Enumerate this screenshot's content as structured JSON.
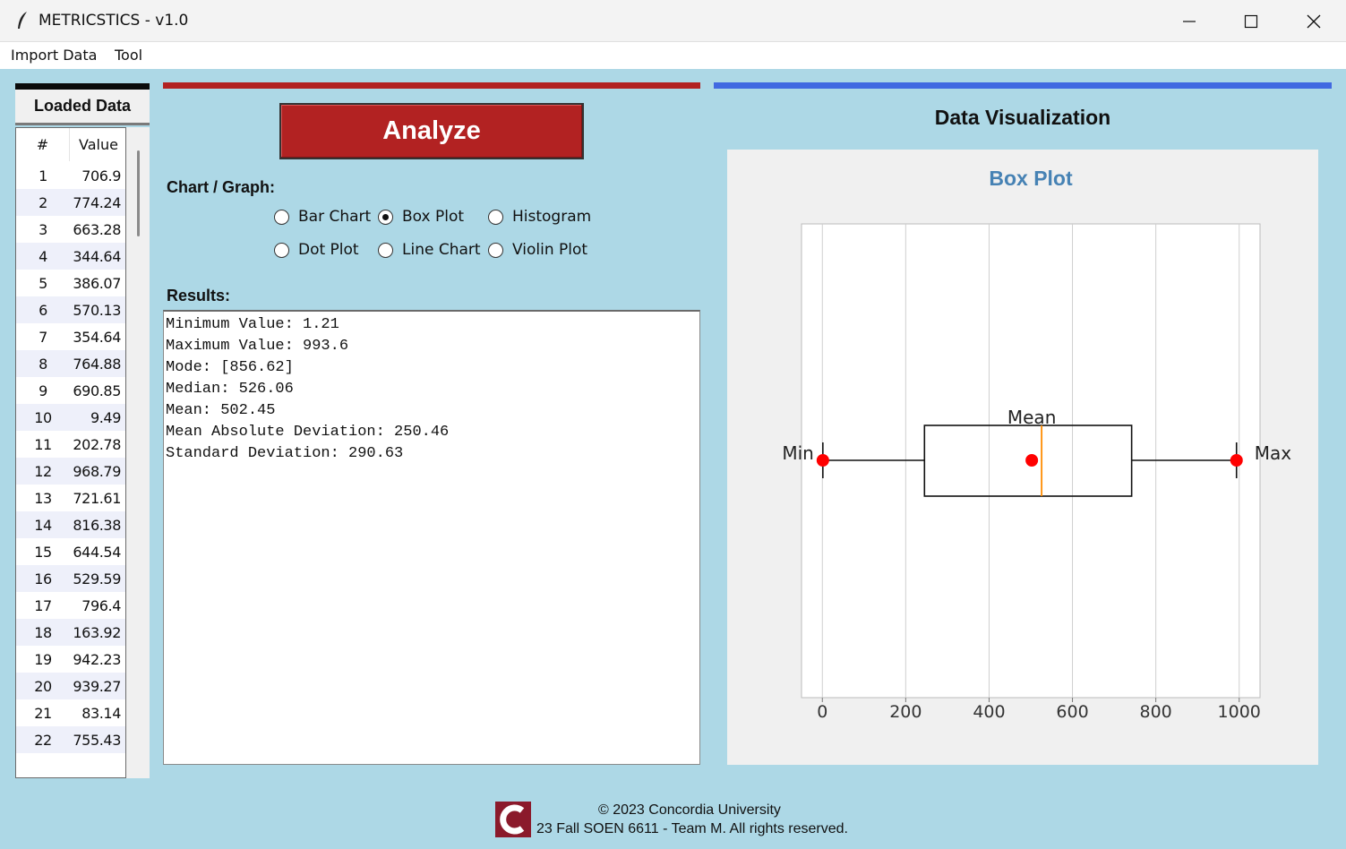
{
  "window": {
    "title": "METRICSTICS - v1.0"
  },
  "menu": {
    "items": [
      "Import Data",
      "Tool"
    ]
  },
  "loaded_data": {
    "title": "Loaded Data",
    "columns": [
      "#",
      "Value"
    ],
    "rows": [
      [
        "1",
        "706.9"
      ],
      [
        "2",
        "774.24"
      ],
      [
        "3",
        "663.28"
      ],
      [
        "4",
        "344.64"
      ],
      [
        "5",
        "386.07"
      ],
      [
        "6",
        "570.13"
      ],
      [
        "7",
        "354.64"
      ],
      [
        "8",
        "764.88"
      ],
      [
        "9",
        "690.85"
      ],
      [
        "10",
        "9.49"
      ],
      [
        "11",
        "202.78"
      ],
      [
        "12",
        "968.79"
      ],
      [
        "13",
        "721.61"
      ],
      [
        "14",
        "816.38"
      ],
      [
        "15",
        "644.54"
      ],
      [
        "16",
        "529.59"
      ],
      [
        "17",
        "796.4"
      ],
      [
        "18",
        "163.92"
      ],
      [
        "19",
        "942.23"
      ],
      [
        "20",
        "939.27"
      ],
      [
        "21",
        "83.14"
      ],
      [
        "22",
        "755.43"
      ]
    ]
  },
  "controls": {
    "analyze_label": "Analyze",
    "chart_label": "Chart / Graph:",
    "chart_options": [
      "Bar Chart",
      "Box Plot",
      "Histogram",
      "Dot Plot",
      "Line Chart",
      "Violin Plot"
    ],
    "selected_chart": "Box Plot"
  },
  "results": {
    "label": "Results:",
    "lines": [
      "Minimum Value: 1.21",
      "Maximum Value: 993.6",
      "Mode: [856.62]",
      "Median: 526.06",
      "Mean: 502.45",
      "Mean Absolute Deviation: 250.46",
      "Standard Deviation: 290.63"
    ]
  },
  "visualization": {
    "title": "Data Visualization"
  },
  "chart_data": {
    "type": "box",
    "title": "Box Plot",
    "xlim": [
      -50,
      1050
    ],
    "x_ticks": [
      0,
      200,
      400,
      600,
      800,
      1000
    ],
    "min": 1.21,
    "q1": 245,
    "median": 526.06,
    "q3": 742,
    "max": 993.6,
    "mean": 502.45,
    "annotations": [
      "Min",
      "Max",
      "Mean"
    ],
    "grid": true,
    "colors": {
      "title": "#4682b4",
      "points": "#ff0000",
      "median": "#ff8c00"
    }
  },
  "footer": {
    "line1": "© 2023 Concordia University",
    "line2": "23 Fall SOEN 6611 - Team M. All rights reserved."
  }
}
